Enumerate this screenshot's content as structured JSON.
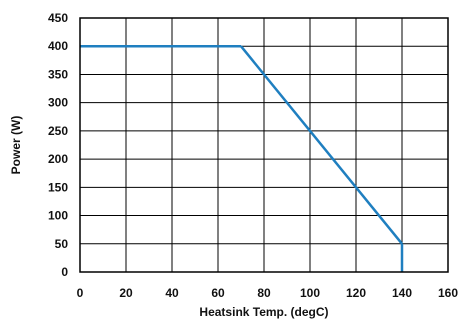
{
  "chart_data": {
    "type": "line",
    "xlabel": "Heatsink Temp. (degC)",
    "ylabel": "Power (W)",
    "xlim": [
      0,
      160
    ],
    "ylim": [
      0,
      450
    ],
    "xticks": [
      "0",
      "20",
      "40",
      "60",
      "80",
      "100",
      "120",
      "140",
      "160"
    ],
    "yticks": [
      "0",
      "50",
      "100",
      "150",
      "200",
      "250",
      "300",
      "350",
      "400",
      "450"
    ],
    "grid": true,
    "series": [
      {
        "x": [
          0,
          70,
          140,
          140
        ],
        "y": [
          400,
          400,
          50,
          0
        ],
        "color": "#1f7fc0"
      }
    ]
  }
}
